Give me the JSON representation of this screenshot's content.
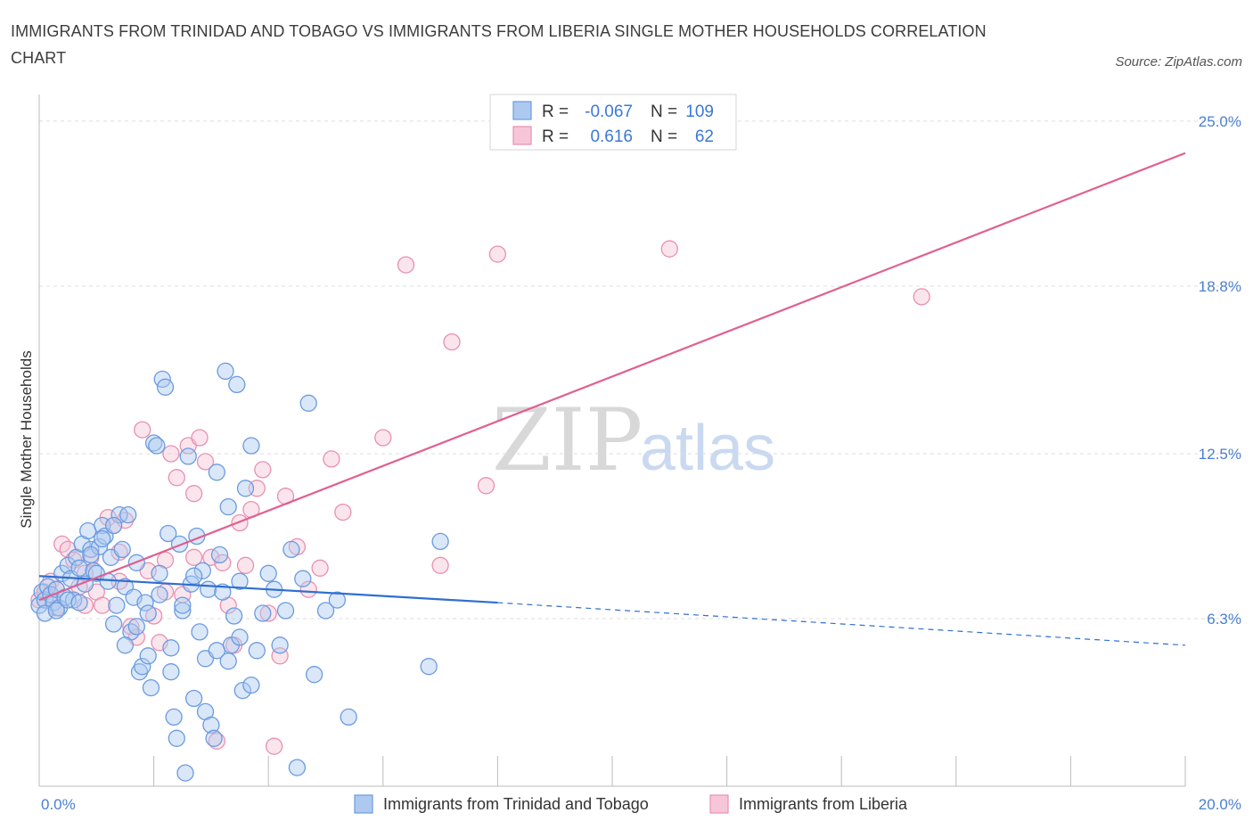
{
  "title": "IMMIGRANTS FROM TRINIDAD AND TOBAGO VS IMMIGRANTS FROM LIBERIA SINGLE MOTHER HOUSEHOLDS CORRELATION CHART",
  "source": "Source: ZipAtlas.com",
  "watermark": {
    "zip": "ZIP",
    "atlas": "atlas"
  },
  "colors": {
    "blue": "#6a9be0",
    "blue_fill": "#aec9f0",
    "blue_line": "#2f6fd0",
    "pink": "#e890b0",
    "pink_fill": "#f6c6d8",
    "pink_line": "#e06090",
    "grid": "#dddddd",
    "tick": "#4a7fd0"
  },
  "legend": {
    "rows": [
      {
        "r_label": "R =",
        "r_value": "-0.067",
        "n_label": "N =",
        "n_value": "109"
      },
      {
        "r_label": "R =",
        "r_value": "0.616",
        "n_label": "N =",
        "n_value": "62"
      }
    ]
  },
  "chart_data": {
    "type": "scatter",
    "title": "IMMIGRANTS FROM TRINIDAD AND TOBAGO VS IMMIGRANTS FROM LIBERIA SINGLE MOTHER HOUSEHOLDS CORRELATION CHART",
    "xlabel": "",
    "ylabel": "Single Mother Households",
    "xlim": [
      0,
      20
    ],
    "ylim": [
      0,
      25.6
    ],
    "x_tick_labels": [
      {
        "value": 0,
        "label": "0.0%"
      },
      {
        "value": 20,
        "label": "20.0%"
      }
    ],
    "y_tick_labels": [
      {
        "value": 6.3,
        "label": "6.3%"
      },
      {
        "value": 12.5,
        "label": "12.5%"
      },
      {
        "value": 18.8,
        "label": "18.8%"
      },
      {
        "value": 25.0,
        "label": "25.0%"
      }
    ],
    "grid": true,
    "series": [
      {
        "name": "Immigrants from Trinidad and Tobago",
        "color": "blue",
        "R": -0.067,
        "N": 109,
        "trend": {
          "x0": 0,
          "y0": 7.9,
          "x1": 8.0,
          "y1": 6.9,
          "dash_x1": 20,
          "dash_y1": 5.3
        },
        "points": [
          [
            0.0,
            6.8
          ],
          [
            0.05,
            7.3
          ],
          [
            0.1,
            7.0
          ],
          [
            0.15,
            7.5
          ],
          [
            0.2,
            7.2
          ],
          [
            0.25,
            6.9
          ],
          [
            0.3,
            7.4
          ],
          [
            0.35,
            6.7
          ],
          [
            0.4,
            8.0
          ],
          [
            0.45,
            7.1
          ],
          [
            0.5,
            8.3
          ],
          [
            0.55,
            7.8
          ],
          [
            0.6,
            7.0
          ],
          [
            0.65,
            8.6
          ],
          [
            0.7,
            8.2
          ],
          [
            0.75,
            9.1
          ],
          [
            0.8,
            7.6
          ],
          [
            0.85,
            9.6
          ],
          [
            0.9,
            8.9
          ],
          [
            0.95,
            8.1
          ],
          [
            1.0,
            8.0
          ],
          [
            1.05,
            9.0
          ],
          [
            1.1,
            9.8
          ],
          [
            1.15,
            9.4
          ],
          [
            1.2,
            7.7
          ],
          [
            1.25,
            8.6
          ],
          [
            1.3,
            6.1
          ],
          [
            1.35,
            6.8
          ],
          [
            1.4,
            10.2
          ],
          [
            1.45,
            8.9
          ],
          [
            1.5,
            7.5
          ],
          [
            1.55,
            10.2
          ],
          [
            1.6,
            5.8
          ],
          [
            1.65,
            7.1
          ],
          [
            1.7,
            8.4
          ],
          [
            1.75,
            4.3
          ],
          [
            1.8,
            4.5
          ],
          [
            1.85,
            6.9
          ],
          [
            1.9,
            6.5
          ],
          [
            1.95,
            3.7
          ],
          [
            2.0,
            12.9
          ],
          [
            2.05,
            12.8
          ],
          [
            2.1,
            8.0
          ],
          [
            2.15,
            15.3
          ],
          [
            2.2,
            15.0
          ],
          [
            2.25,
            9.5
          ],
          [
            2.3,
            4.3
          ],
          [
            2.35,
            2.6
          ],
          [
            2.4,
            1.8
          ],
          [
            2.45,
            9.1
          ],
          [
            2.5,
            6.6
          ],
          [
            2.55,
            0.5
          ],
          [
            2.6,
            12.4
          ],
          [
            2.65,
            7.6
          ],
          [
            2.7,
            3.3
          ],
          [
            2.75,
            9.4
          ],
          [
            2.8,
            5.8
          ],
          [
            2.85,
            8.1
          ],
          [
            2.9,
            2.8
          ],
          [
            2.95,
            7.4
          ],
          [
            3.0,
            2.3
          ],
          [
            3.05,
            1.8
          ],
          [
            3.1,
            11.8
          ],
          [
            3.15,
            8.7
          ],
          [
            3.2,
            7.3
          ],
          [
            3.25,
            15.6
          ],
          [
            3.3,
            10.5
          ],
          [
            3.35,
            5.3
          ],
          [
            3.4,
            6.4
          ],
          [
            3.45,
            15.1
          ],
          [
            3.5,
            5.6
          ],
          [
            3.55,
            3.6
          ],
          [
            3.6,
            11.2
          ],
          [
            3.7,
            12.8
          ],
          [
            3.8,
            5.1
          ],
          [
            3.9,
            6.5
          ],
          [
            4.0,
            8.0
          ],
          [
            4.1,
            7.4
          ],
          [
            4.2,
            5.3
          ],
          [
            4.3,
            6.6
          ],
          [
            4.4,
            8.9
          ],
          [
            4.5,
            0.7
          ],
          [
            4.6,
            7.8
          ],
          [
            4.7,
            14.4
          ],
          [
            4.8,
            4.2
          ],
          [
            5.0,
            6.6
          ],
          [
            5.2,
            7.0
          ],
          [
            5.4,
            2.6
          ],
          [
            6.8,
            4.5
          ],
          [
            7.0,
            9.2
          ],
          [
            0.1,
            6.5
          ],
          [
            0.3,
            6.6
          ],
          [
            0.5,
            7.0
          ],
          [
            0.7,
            6.9
          ],
          [
            0.9,
            8.7
          ],
          [
            1.1,
            9.3
          ],
          [
            1.3,
            9.8
          ],
          [
            1.5,
            5.3
          ],
          [
            1.7,
            6.0
          ],
          [
            1.9,
            4.9
          ],
          [
            2.1,
            7.2
          ],
          [
            2.3,
            5.2
          ],
          [
            2.5,
            6.8
          ],
          [
            2.7,
            7.9
          ],
          [
            2.9,
            4.8
          ],
          [
            3.1,
            5.1
          ],
          [
            3.3,
            4.7
          ],
          [
            3.5,
            7.7
          ],
          [
            3.7,
            3.8
          ]
        ]
      },
      {
        "name": "Immigrants from Liberia",
        "color": "pink",
        "R": 0.616,
        "N": 62,
        "trend": {
          "x0": 0,
          "y0": 7.0,
          "x1": 20,
          "y1": 23.8
        },
        "points": [
          [
            0.0,
            7.0
          ],
          [
            0.1,
            7.3
          ],
          [
            0.2,
            7.7
          ],
          [
            0.3,
            7.4
          ],
          [
            0.4,
            9.1
          ],
          [
            0.5,
            8.9
          ],
          [
            0.6,
            8.5
          ],
          [
            0.7,
            7.5
          ],
          [
            0.8,
            8.0
          ],
          [
            0.9,
            8.6
          ],
          [
            1.0,
            7.3
          ],
          [
            1.1,
            6.8
          ],
          [
            1.2,
            10.1
          ],
          [
            1.3,
            9.8
          ],
          [
            1.4,
            8.8
          ],
          [
            1.5,
            10.0
          ],
          [
            1.6,
            6.0
          ],
          [
            1.7,
            5.6
          ],
          [
            1.8,
            13.4
          ],
          [
            1.9,
            8.1
          ],
          [
            2.0,
            6.4
          ],
          [
            2.1,
            5.4
          ],
          [
            2.2,
            7.3
          ],
          [
            2.3,
            12.5
          ],
          [
            2.4,
            11.6
          ],
          [
            2.5,
            7.2
          ],
          [
            2.6,
            12.8
          ],
          [
            2.7,
            11.0
          ],
          [
            2.8,
            13.1
          ],
          [
            2.9,
            12.2
          ],
          [
            3.0,
            8.6
          ],
          [
            3.1,
            1.7
          ],
          [
            3.2,
            8.4
          ],
          [
            3.3,
            6.8
          ],
          [
            3.4,
            5.3
          ],
          [
            3.5,
            9.9
          ],
          [
            3.6,
            8.3
          ],
          [
            3.7,
            10.4
          ],
          [
            3.8,
            11.2
          ],
          [
            3.9,
            11.9
          ],
          [
            4.0,
            6.5
          ],
          [
            4.1,
            1.5
          ],
          [
            4.2,
            4.9
          ],
          [
            4.3,
            10.9
          ],
          [
            4.5,
            9.0
          ],
          [
            4.7,
            7.4
          ],
          [
            4.9,
            8.2
          ],
          [
            5.1,
            12.3
          ],
          [
            5.3,
            10.3
          ],
          [
            6.0,
            13.1
          ],
          [
            6.4,
            19.6
          ],
          [
            7.0,
            8.3
          ],
          [
            7.2,
            16.7
          ],
          [
            7.8,
            11.3
          ],
          [
            8.0,
            20.0
          ],
          [
            11.0,
            20.2
          ],
          [
            15.4,
            18.4
          ],
          [
            0.3,
            6.7
          ],
          [
            0.8,
            6.8
          ],
          [
            1.4,
            7.7
          ],
          [
            2.2,
            8.5
          ],
          [
            2.7,
            8.6
          ]
        ]
      }
    ]
  }
}
